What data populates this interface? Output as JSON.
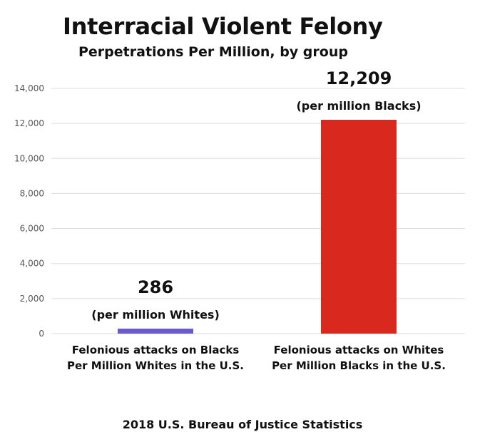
{
  "title": "Interracial Violent Felony",
  "subtitle": "Perpetrations Per Million, by group",
  "footer": "2018 U.S. Bureau of Justice Statistics",
  "chart_data": {
    "type": "bar",
    "categories": [
      [
        "Felonious attacks on Blacks",
        "Per Million Whites in the U.S."
      ],
      [
        "Felonious attacks on Whites",
        "Per Million Blacks in the U.S."
      ]
    ],
    "values": [
      286,
      12209
    ],
    "value_labels": [
      "286",
      "12,209"
    ],
    "value_sublabels": [
      "(per million Whites)",
      "(per million Blacks)"
    ],
    "colors": [
      "#6a5acd",
      "#d9281e"
    ],
    "ylim": [
      0,
      14000
    ],
    "yticks": [
      0,
      2000,
      4000,
      6000,
      8000,
      10000,
      12000,
      14000
    ],
    "ytick_labels": [
      "0",
      "2,000",
      "4,000",
      "6,000",
      "8,000",
      "10,000",
      "12,000",
      "14,000"
    ],
    "grid": true,
    "xlabel": "",
    "ylabel": ""
  }
}
